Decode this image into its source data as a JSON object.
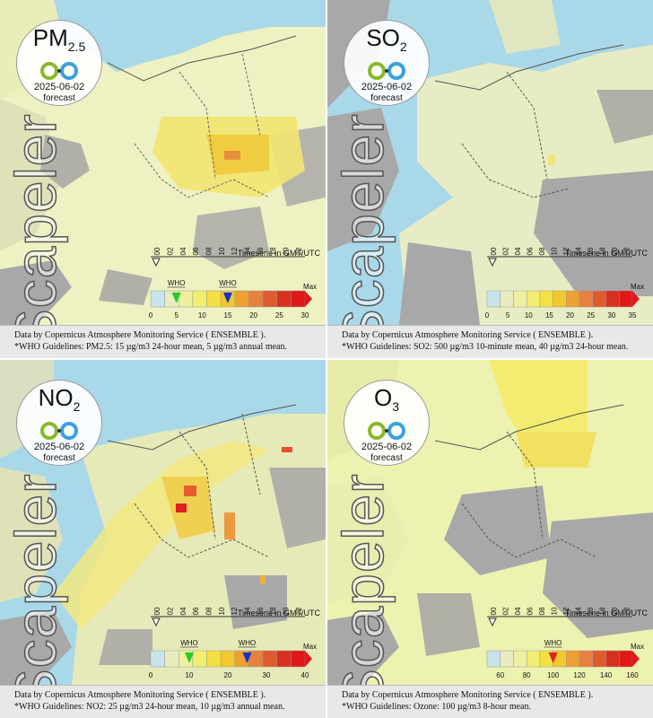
{
  "panels": [
    {
      "pollutant_main": "PM",
      "pollutant_sub": "2.5",
      "date": "2025-06-02",
      "forecast": "forecast",
      "brand": "Scapeler",
      "timeserie": "Timeserie in GMT/UTC",
      "hours": [
        "00",
        "02",
        "04",
        "06",
        "08",
        "10",
        "12",
        "14",
        "16",
        "18",
        "20",
        "22"
      ],
      "scale_labels": [
        "0",
        "5",
        "10",
        "15",
        "20",
        "25",
        "30"
      ],
      "scale_max_label": "Max",
      "who_labels": [
        "WHO",
        "WHO"
      ],
      "who_values": [
        5,
        15
      ],
      "scale_max": 30,
      "footer_line1": "Data by Copernicus Atmosphere Monitoring Service ( ENSEMBLE ).",
      "footer_line2": "*WHO Guidelines: PM2.5: 15 µg/m3 24-hour mean, 5 µg/m3 annual mean."
    },
    {
      "pollutant_main": "SO",
      "pollutant_sub": "2",
      "date": "2025-06-02",
      "forecast": "forecast",
      "brand": "Scapeler",
      "timeserie": "Timeserie in GMT/UTC",
      "hours": [
        "00",
        "02",
        "04",
        "06",
        "08",
        "10",
        "12",
        "14",
        "16",
        "18",
        "20",
        "22"
      ],
      "scale_labels": [
        "0",
        "5",
        "10",
        "15",
        "20",
        "25",
        "30",
        "35"
      ],
      "scale_max_label": "Max",
      "who_labels": [],
      "who_values": [],
      "scale_max": 35,
      "footer_line1": "Data by Copernicus Atmosphere Monitoring Service ( ENSEMBLE ).",
      "footer_line2": "*WHO Guidelines: SO2: 500 µg/m3 10-minute mean, 40 µg/m3 24-hour mean."
    },
    {
      "pollutant_main": "NO",
      "pollutant_sub": "2",
      "date": "2025-06-02",
      "forecast": "forecast",
      "brand": "Scapeler",
      "timeserie": "Timeserie in GMT/UTC",
      "hours": [
        "00",
        "02",
        "04",
        "06",
        "08",
        "10",
        "12",
        "14",
        "16",
        "18",
        "20",
        "22"
      ],
      "scale_labels": [
        "0",
        "10",
        "20",
        "30",
        "40"
      ],
      "scale_max_label": "Max",
      "who_labels": [
        "WHO",
        "WHO"
      ],
      "who_values": [
        10,
        25
      ],
      "scale_max": 40,
      "footer_line1": "Data by Copernicus Atmosphere Monitoring Service ( ENSEMBLE ).",
      "footer_line2": "*WHO Guidelines: NO2: 25 µg/m3 24-hour mean, 10 µg/m3 annual mean."
    },
    {
      "pollutant_main": "O",
      "pollutant_sub": "3",
      "date": "2025-06-02",
      "forecast": "forecast",
      "brand": "Scapeler",
      "timeserie": "Timeserie in GMT/UTC",
      "hours": [
        "00",
        "02",
        "04",
        "06",
        "08",
        "10",
        "12",
        "14",
        "16",
        "18",
        "20",
        "22"
      ],
      "scale_labels": [
        "60",
        "80",
        "100",
        "120",
        "140",
        "160"
      ],
      "scale_max_label": "Max",
      "who_labels": [
        "WHO"
      ],
      "who_values": [
        100
      ],
      "scale_min": 50,
      "scale_max": 160,
      "footer_line1": "Data by Copernicus Atmosphere Monitoring Service ( ENSEMBLE ).",
      "footer_line2": "*WHO Guidelines: Ozone: 100 µg/m3 8-hour mean."
    }
  ],
  "colors": {
    "sea": "#a9d8e8",
    "land_grey": "#a8a8a8",
    "low": "#e8ecb8",
    "mid": "#f2e870",
    "high": "#f0c030",
    "peak": "#e03020",
    "who_green": "#22cc22",
    "who_blue": "#1133cc",
    "who_red": "#dd2222",
    "footer_bg": "#e8e8e8"
  },
  "scale_colors": [
    "#c8e4ec",
    "#e8ecc0",
    "#eef0a0",
    "#f2ee70",
    "#f4e040",
    "#f2c830",
    "#eea030",
    "#e88040",
    "#e05a30",
    "#d83020",
    "#e01818"
  ]
}
